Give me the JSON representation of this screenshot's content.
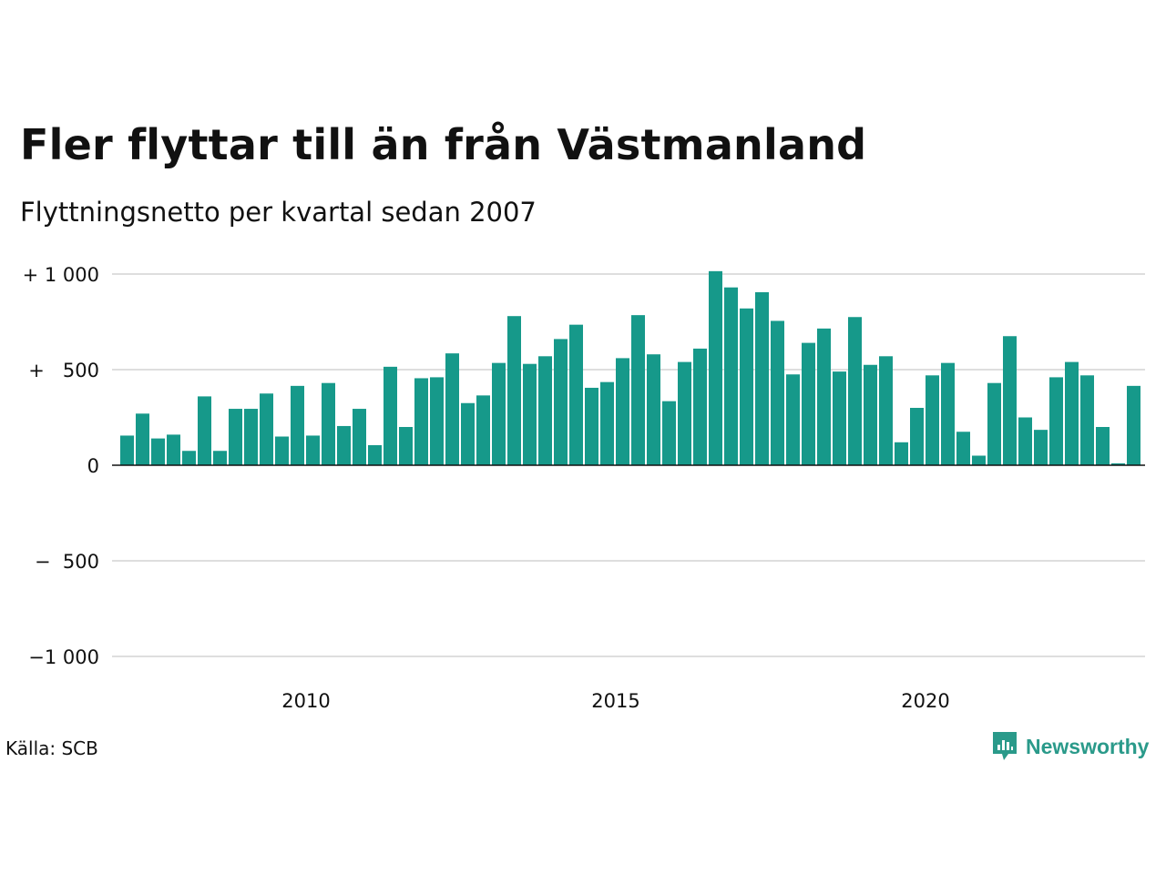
{
  "chart_data": {
    "type": "bar",
    "title": "Fler flyttar till än från Västmanland",
    "subtitle": "Flyttningsnetto per kvartal sedan 2007",
    "ylim": [
      -1100,
      1000
    ],
    "y_ticks": [
      {
        "value": 1000,
        "label": "+ 1 000"
      },
      {
        "value": 500,
        "label": "+   500"
      },
      {
        "value": 0,
        "label": "0"
      },
      {
        "value": -500,
        "label": "−  500"
      },
      {
        "value": -1000,
        "label": "−1 000"
      }
    ],
    "x_ticks": [
      {
        "year": 2010,
        "label": "2010"
      },
      {
        "year": 2015,
        "label": "2015"
      },
      {
        "year": 2020,
        "label": "2020"
      }
    ],
    "x_start": "2007 Q1",
    "values": [
      155,
      270,
      140,
      160,
      75,
      360,
      75,
      295,
      295,
      375,
      150,
      415,
      155,
      430,
      205,
      295,
      105,
      515,
      200,
      455,
      460,
      585,
      325,
      365,
      535,
      780,
      530,
      570,
      660,
      735,
      405,
      435,
      560,
      785,
      580,
      335,
      540,
      610,
      1015,
      930,
      820,
      905,
      755,
      475,
      640,
      715,
      490,
      775,
      525,
      570,
      120,
      300,
      470,
      535,
      175,
      50,
      430,
      675,
      250,
      185,
      460,
      540,
      470,
      200,
      10,
      415
    ],
    "bar_color": "#16998a",
    "grid": true,
    "source": "Källa: SCB",
    "brand": "Newsworthy",
    "brand_color": "#2a9a8a"
  }
}
